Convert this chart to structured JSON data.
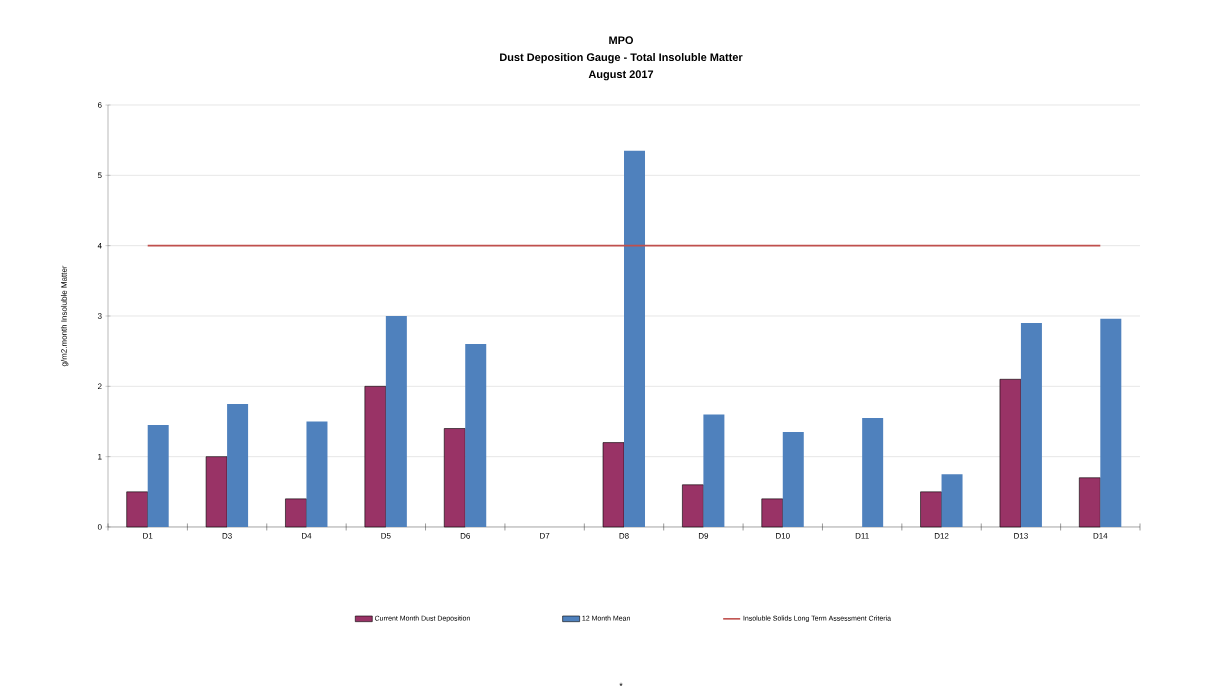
{
  "chart_data": {
    "type": "bar",
    "title": "MPO",
    "subtitle": "Dust Deposition Gauge - Total Insoluble Matter",
    "annotations": [
      "August 2017",
      "*"
    ],
    "ylabel": "g/m2.month Insoluble Matter",
    "categories": [
      "D1",
      "D3",
      "D4",
      "D5",
      "D6",
      "D7",
      "D8",
      "D9",
      "D10",
      "D11",
      "D12",
      "D13",
      "D14"
    ],
    "series": [
      {
        "name": "Current Month Dust Deposition",
        "color": "#993366",
        "values": [
          0.5,
          1.0,
          0.4,
          2.0,
          1.4,
          null,
          1.2,
          0.6,
          0.4,
          null,
          0.5,
          2.1,
          0.7
        ]
      },
      {
        "name": "12 Month Mean",
        "color": "#4f81bd",
        "values": [
          1.45,
          1.75,
          1.5,
          3.0,
          2.6,
          null,
          5.35,
          1.6,
          1.35,
          1.55,
          0.75,
          2.9,
          2.96
        ]
      },
      {
        "name": "Insoluble Solids Long Term Assessment Criteria",
        "type": "line",
        "color": "#c0504d",
        "values": [
          4,
          4,
          4,
          4,
          4,
          4,
          4,
          4,
          4,
          4,
          4,
          4,
          4
        ]
      }
    ],
    "ylim": [
      0,
      6
    ],
    "yticks": [
      0,
      1,
      2,
      3,
      4,
      5,
      6
    ],
    "grid": "y",
    "legend": "bottom"
  }
}
